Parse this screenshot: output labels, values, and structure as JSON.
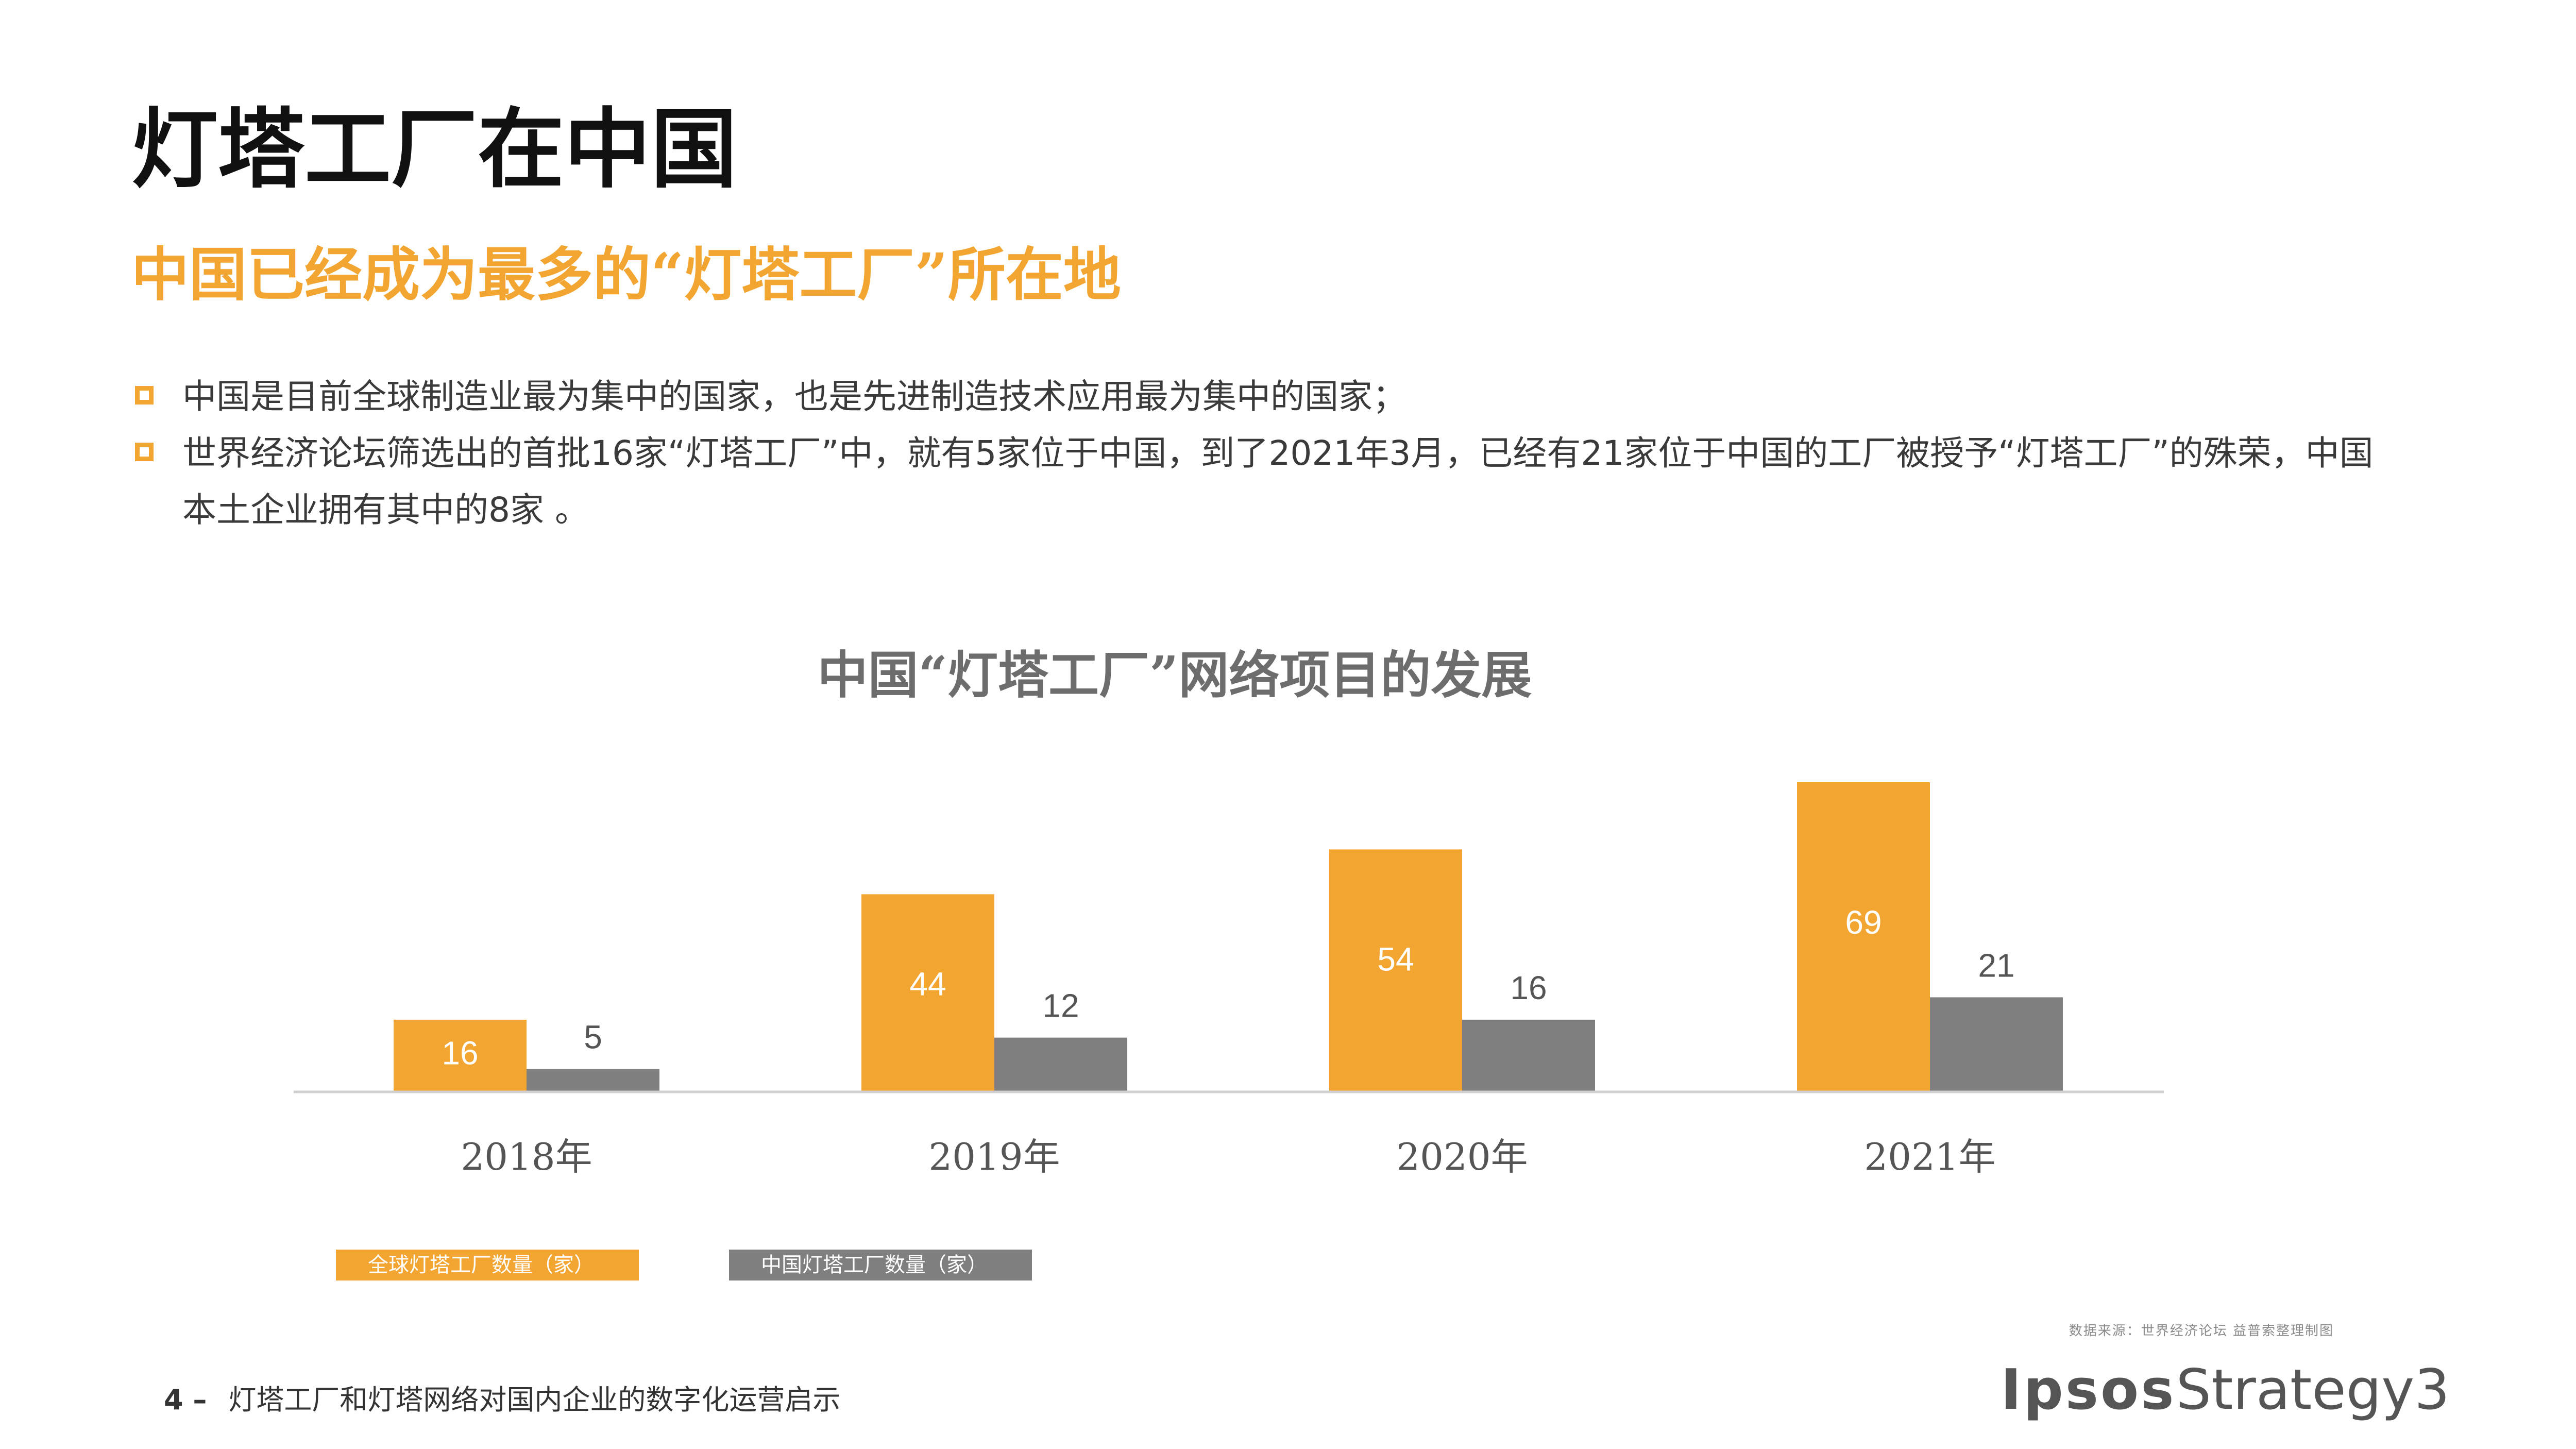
{
  "header": {
    "title": "灯塔工厂在中国",
    "subtitle": "中国已经成为最多的“灯塔工厂”所在地"
  },
  "bullets": [
    "中国是目前全球制造业最为集中的国家，也是先进制造技术应用最为集中的国家；",
    "世界经济论坛筛选出的首批16家“灯塔工厂”中，就有5家位于中国，到了2021年3月，已经有21家位于中国的工厂被授予“灯塔工厂”的殊荣，中国本土企业拥有其中的8家 。"
  ],
  "chart_data": {
    "type": "bar",
    "title": "中国“灯塔工厂”网络项目的发展",
    "categories": [
      "2018年",
      "2019年",
      "2020年",
      "2021年"
    ],
    "series": [
      {
        "name": "全球灯塔工厂数量（家）",
        "values": [
          16,
          44,
          54,
          69
        ],
        "color": "#f2a531"
      },
      {
        "name": "中国灯塔工厂数量（家）",
        "values": [
          5,
          12,
          16,
          21
        ],
        "color": "#7f7f7f"
      }
    ],
    "ylim": [
      0,
      69
    ],
    "grid": false,
    "legend": "bottom-left"
  },
  "footer": {
    "page_number": "4 –",
    "doc_title": "灯塔工厂和灯塔网络对国内企业的数字化运营启示",
    "source": "数据来源：世界经济论坛    益普索整理制图",
    "logo_bold": "Ipsos",
    "logo_light": "Strategy3"
  },
  "colors": {
    "accent": "#f2a531",
    "gray": "#7f7f7f"
  }
}
